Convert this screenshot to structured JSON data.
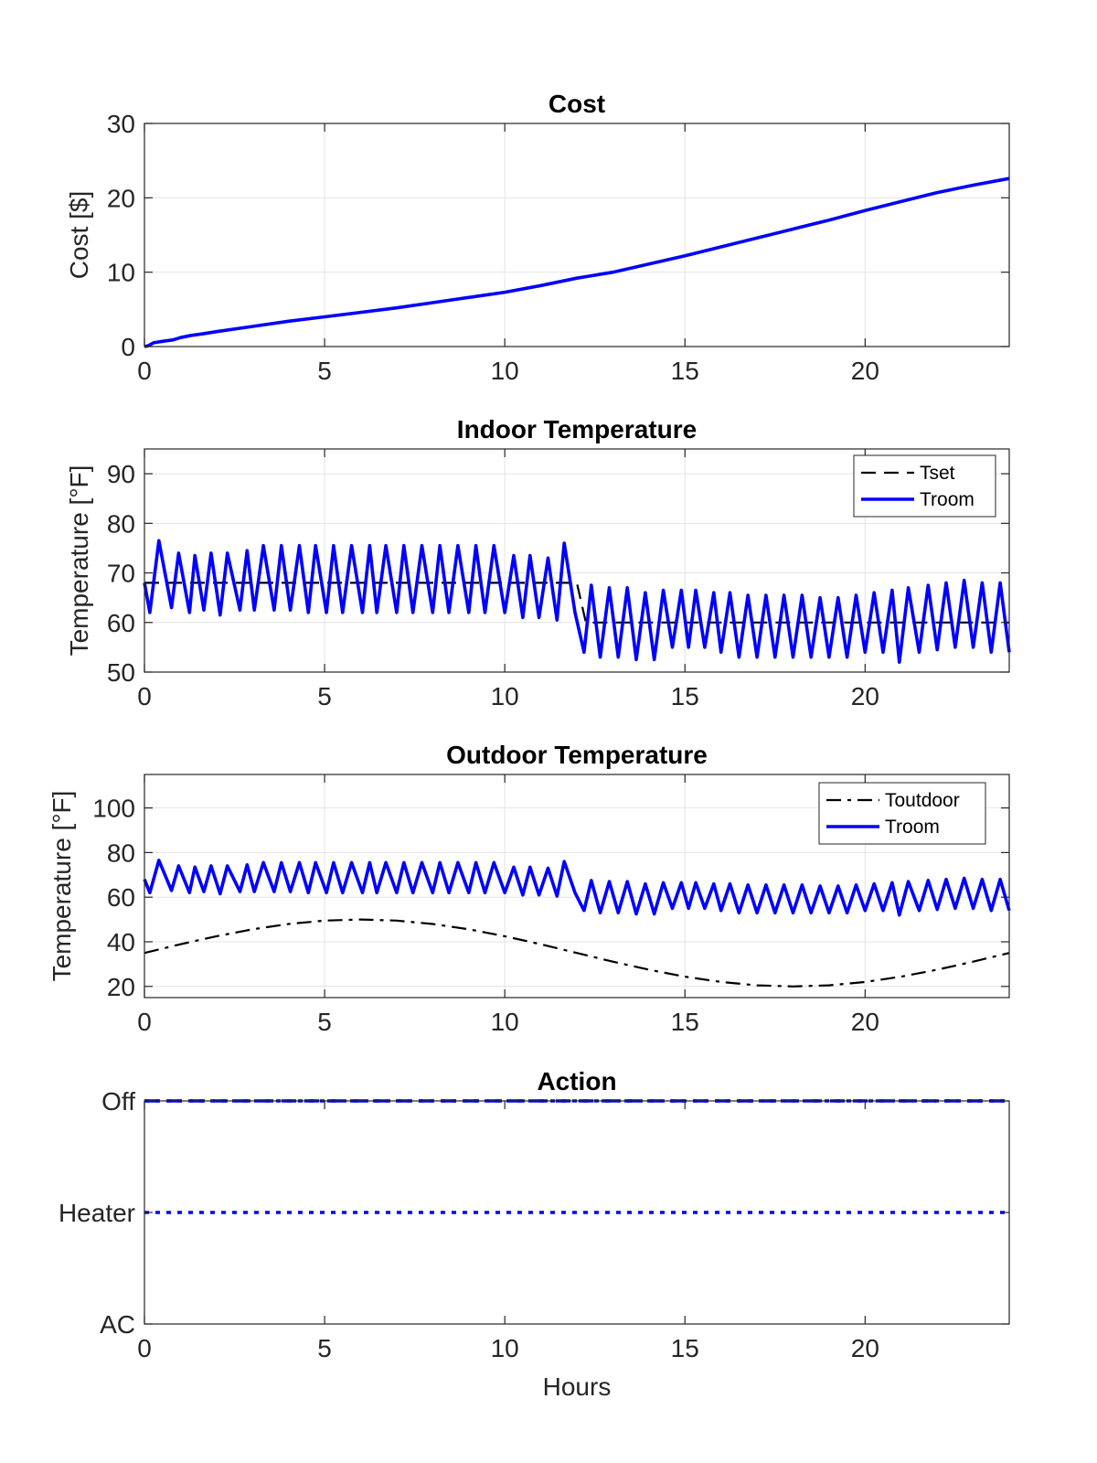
{
  "chart_data": [
    {
      "id": "cost",
      "type": "line",
      "title": "Cost",
      "xlabel": "",
      "ylabel": "Cost [$]",
      "xlim": [
        0,
        24
      ],
      "ylim": [
        0,
        30
      ],
      "xticks": [
        0,
        5,
        10,
        15,
        20
      ],
      "yticks": [
        0,
        10,
        20,
        30
      ],
      "ytick_labels": [
        "0",
        "10",
        "20",
        "30"
      ],
      "grid": true,
      "series": [
        {
          "style": "solid",
          "color": "#0000ff",
          "x": [
            0,
            0.1,
            0.25,
            0.5,
            0.8,
            1.0,
            1.3,
            1.6,
            2.0,
            3.0,
            4.0,
            5.0,
            6.0,
            7.0,
            8.0,
            9.0,
            10.0,
            11.0,
            12.0,
            13.0,
            14.0,
            15.0,
            16.0,
            17.0,
            18.0,
            19.0,
            20.0,
            21.0,
            22.0,
            23.0,
            24.0
          ],
          "y": [
            0,
            0.1,
            0.5,
            0.7,
            0.9,
            1.2,
            1.5,
            1.7,
            2.0,
            2.7,
            3.4,
            4.0,
            4.6,
            5.2,
            5.9,
            6.6,
            7.3,
            8.2,
            9.2,
            10.0,
            11.1,
            12.2,
            13.4,
            14.6,
            15.8,
            17.0,
            18.3,
            19.5,
            20.7,
            21.7,
            22.6
          ]
        }
      ]
    },
    {
      "id": "indoor",
      "type": "line",
      "title": "Indoor Temperature",
      "xlabel": "",
      "ylabel": "Temperature [°F]",
      "xlim": [
        0,
        24
      ],
      "ylim": [
        50,
        95
      ],
      "xticks": [
        0,
        5,
        10,
        15,
        20
      ],
      "yticks": [
        50,
        60,
        70,
        80,
        90
      ],
      "ytick_labels": [
        "50",
        "60",
        "70",
        "80",
        "90"
      ],
      "grid": true,
      "legend": "top-right",
      "series": [
        {
          "name": "Tset",
          "style": "dashed",
          "color": "#000000",
          "x": [
            0,
            12,
            12.25,
            24
          ],
          "y": [
            68,
            68,
            60,
            60
          ]
        },
        {
          "name": "Troom",
          "style": "solid",
          "color": "#0000ff",
          "x": [
            0,
            0.15,
            0.4,
            0.75,
            0.95,
            1.25,
            1.4,
            1.65,
            1.85,
            2.1,
            2.3,
            2.65,
            2.85,
            3.05,
            3.3,
            3.6,
            3.8,
            4.05,
            4.3,
            4.55,
            4.75,
            5.05,
            5.25,
            5.5,
            5.75,
            6.05,
            6.25,
            6.45,
            6.7,
            7.0,
            7.2,
            7.45,
            7.7,
            8.0,
            8.2,
            8.45,
            8.7,
            9.0,
            9.2,
            9.45,
            9.7,
            10.0,
            10.25,
            10.5,
            10.7,
            10.95,
            11.2,
            11.45,
            11.65,
            11.95,
            12.2,
            12.4,
            12.65,
            12.9,
            13.15,
            13.4,
            13.65,
            13.9,
            14.15,
            14.4,
            14.65,
            14.9,
            15.1,
            15.3,
            15.55,
            15.8,
            16.0,
            16.25,
            16.5,
            16.75,
            17.0,
            17.25,
            17.5,
            17.75,
            18.0,
            18.25,
            18.5,
            18.75,
            19.0,
            19.25,
            19.5,
            19.75,
            20.0,
            20.25,
            20.5,
            20.75,
            20.95,
            21.2,
            21.5,
            21.75,
            22.0,
            22.25,
            22.5,
            22.75,
            23.0,
            23.25,
            23.5,
            23.75,
            24.0
          ],
          "y": [
            68,
            62,
            76.5,
            63,
            74,
            62,
            73.5,
            62.5,
            74,
            61.5,
            74,
            62.5,
            74.5,
            62.5,
            75.5,
            62.5,
            75.5,
            62.5,
            75.5,
            62,
            75.5,
            62,
            75.5,
            62,
            75.5,
            62,
            75.5,
            62,
            75.5,
            62,
            75.5,
            62,
            75.5,
            62,
            75.5,
            62,
            75.5,
            62,
            75.5,
            62,
            75.5,
            62,
            73.5,
            61,
            73.5,
            61,
            73,
            60.5,
            76,
            62,
            54,
            67.5,
            53,
            67,
            53,
            67,
            52.5,
            66,
            52.5,
            66.5,
            55,
            66.5,
            55,
            66.5,
            55,
            66,
            54,
            66,
            53,
            65.5,
            53,
            65.5,
            53,
            65.5,
            53,
            65.5,
            53,
            65,
            53,
            65,
            53,
            65.5,
            54,
            66,
            54,
            66.5,
            52,
            67,
            54,
            67.5,
            54.5,
            68,
            55,
            68.5,
            55,
            68,
            54,
            68,
            54
          ]
        }
      ]
    },
    {
      "id": "outdoor",
      "type": "line",
      "title": "Outdoor Temperature",
      "xlabel": "",
      "ylabel": "Temperature [°F]",
      "xlim": [
        0,
        24
      ],
      "ylim": [
        15,
        115
      ],
      "xticks": [
        0,
        5,
        10,
        15,
        20
      ],
      "yticks": [
        20,
        40,
        60,
        80,
        100
      ],
      "ytick_labels": [
        "20",
        "40",
        "60",
        "80",
        "100"
      ],
      "grid": true,
      "legend": "top-right",
      "series": [
        {
          "name": "Toutdoor",
          "style": "dashdot",
          "color": "#000000",
          "x": [
            0,
            1,
            2,
            3,
            4,
            5,
            6,
            7,
            8,
            9,
            10,
            11,
            12,
            13,
            14,
            15,
            16,
            17,
            18,
            19,
            20,
            21,
            22,
            23,
            24
          ],
          "y": [
            35,
            38.9,
            42.5,
            45.6,
            48,
            49.5,
            50,
            49.5,
            48,
            45.6,
            42.5,
            38.9,
            35,
            31.1,
            27.5,
            24.4,
            22,
            20.5,
            20,
            20.5,
            22,
            24.4,
            27.5,
            31.1,
            35
          ]
        },
        {
          "name": "Troom",
          "style": "solid",
          "color": "#0000ff",
          "x": [
            0,
            0.15,
            0.4,
            0.75,
            0.95,
            1.25,
            1.4,
            1.65,
            1.85,
            2.1,
            2.3,
            2.65,
            2.85,
            3.05,
            3.3,
            3.6,
            3.8,
            4.05,
            4.3,
            4.55,
            4.75,
            5.05,
            5.25,
            5.5,
            5.75,
            6.05,
            6.25,
            6.45,
            6.7,
            7.0,
            7.2,
            7.45,
            7.7,
            8.0,
            8.2,
            8.45,
            8.7,
            9.0,
            9.2,
            9.45,
            9.7,
            10.0,
            10.25,
            10.5,
            10.7,
            10.95,
            11.2,
            11.45,
            11.65,
            11.95,
            12.2,
            12.4,
            12.65,
            12.9,
            13.15,
            13.4,
            13.65,
            13.9,
            14.15,
            14.4,
            14.65,
            14.9,
            15.1,
            15.3,
            15.55,
            15.8,
            16.0,
            16.25,
            16.5,
            16.75,
            17.0,
            17.25,
            17.5,
            17.75,
            18.0,
            18.25,
            18.5,
            18.75,
            19.0,
            19.25,
            19.5,
            19.75,
            20.0,
            20.25,
            20.5,
            20.75,
            20.95,
            21.2,
            21.5,
            21.75,
            22.0,
            22.25,
            22.5,
            22.75,
            23.0,
            23.25,
            23.5,
            23.75,
            24.0
          ],
          "y": [
            68,
            62,
            76.5,
            63,
            74,
            62,
            73.5,
            62.5,
            74,
            61.5,
            74,
            62.5,
            74.5,
            62.5,
            75.5,
            62.5,
            75.5,
            62.5,
            75.5,
            62,
            75.5,
            62,
            75.5,
            62,
            75.5,
            62,
            75.5,
            62,
            75.5,
            62,
            75.5,
            62,
            75.5,
            62,
            75.5,
            62,
            75.5,
            62,
            75.5,
            62,
            75.5,
            62,
            73.5,
            61,
            73.5,
            61,
            73,
            60.5,
            76,
            62,
            54,
            67.5,
            53,
            67,
            53,
            67,
            52.5,
            66,
            52.5,
            66.5,
            55,
            66.5,
            55,
            66.5,
            55,
            66,
            54,
            66,
            53,
            65.5,
            53,
            65.5,
            53,
            65.5,
            53,
            65.5,
            53,
            65,
            53,
            65,
            53,
            65.5,
            54,
            66,
            54,
            66.5,
            52,
            67,
            54,
            67.5,
            54.5,
            68,
            55,
            68.5,
            55,
            68,
            54,
            68,
            54
          ]
        }
      ]
    },
    {
      "id": "action",
      "type": "line",
      "title": "Action",
      "xlabel": "Hours",
      "ylabel": "",
      "xlim": [
        0,
        24
      ],
      "ylim": [
        0,
        2
      ],
      "xticks": [
        0,
        5,
        10,
        15,
        20
      ],
      "yticks": [
        0,
        1,
        2
      ],
      "ytick_labels": [
        "AC",
        "Heater",
        "Off"
      ],
      "grid": false,
      "series": [
        {
          "style": "dashed",
          "color": "#0000ff",
          "x": [
            0,
            24
          ],
          "y": [
            2,
            2
          ]
        },
        {
          "style": "dotted",
          "color": "#0000ff",
          "x": [
            0,
            24
          ],
          "y": [
            2,
            2
          ]
        },
        {
          "style": "dotted",
          "color": "#0000ff",
          "x": [
            0,
            24
          ],
          "y": [
            1,
            1
          ]
        }
      ]
    }
  ]
}
